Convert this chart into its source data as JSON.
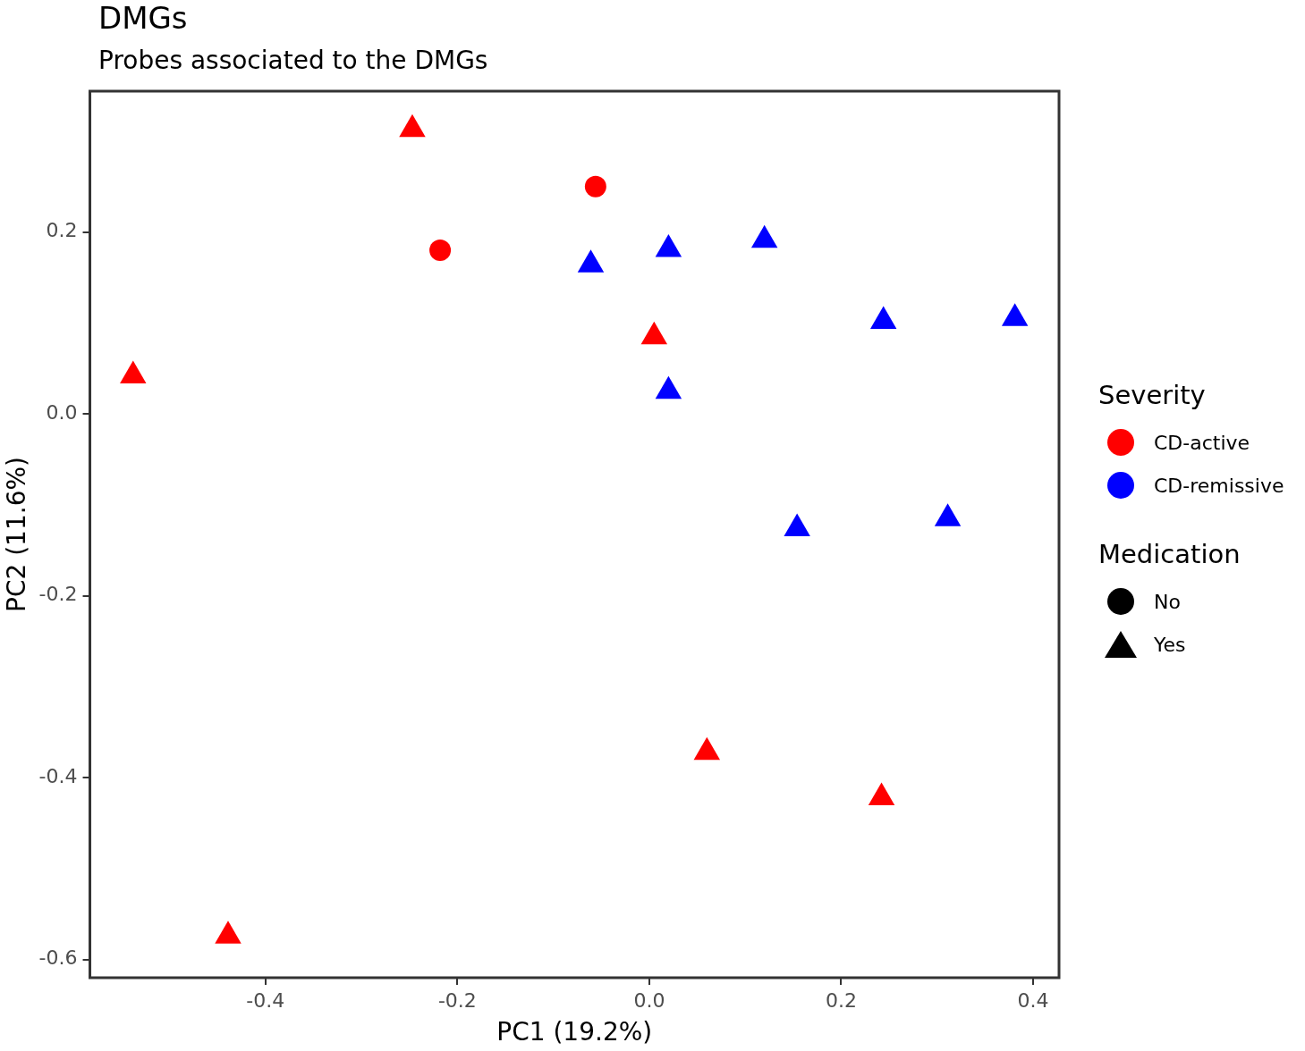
{
  "chart_data": {
    "type": "scatter",
    "title": "DMGs",
    "subtitle": "Probes associated to the DMGs",
    "xlabel": "PC1 (19.2%)",
    "ylabel": "PC2 (11.6%)",
    "xlim": [
      -0.583,
      0.427
    ],
    "ylim": [
      -0.62,
      0.355
    ],
    "xticks": [
      -0.4,
      -0.2,
      {
        "value": 0,
        "label": "0.0"
      },
      0.2,
      0.4
    ],
    "yticks": [
      -0.6,
      -0.4,
      -0.2,
      {
        "value": 0,
        "label": "0.0"
      },
      0.2
    ],
    "grid": false,
    "legend": "right",
    "legend_title": "Severity",
    "annotations": [
      "Medication",
      "No",
      "Yes"
    ],
    "series": [
      {
        "color": "#ff0000",
        "marker": "circle",
        "x": [
          -0.056,
          -0.218
        ],
        "values": [
          0.25,
          0.18
        ]
      },
      {
        "name": "CD-active",
        "color": "#ff0000",
        "marker": "triangle",
        "x": [
          -0.247,
          -0.538,
          0.005,
          0.06,
          0.242,
          -0.439
        ],
        "values": [
          0.313,
          0.042,
          0.085,
          -0.372,
          -0.422,
          -0.574
        ]
      },
      {
        "name": "CD-remissive",
        "color": "#0000ff",
        "marker": "triangle",
        "x": [
          -0.061,
          0.02,
          0.12,
          0.244,
          0.381,
          0.02,
          0.154,
          0.311
        ],
        "values": [
          0.164,
          0.181,
          0.191,
          0.102,
          0.105,
          0.025,
          -0.126,
          -0.115
        ]
      }
    ]
  }
}
